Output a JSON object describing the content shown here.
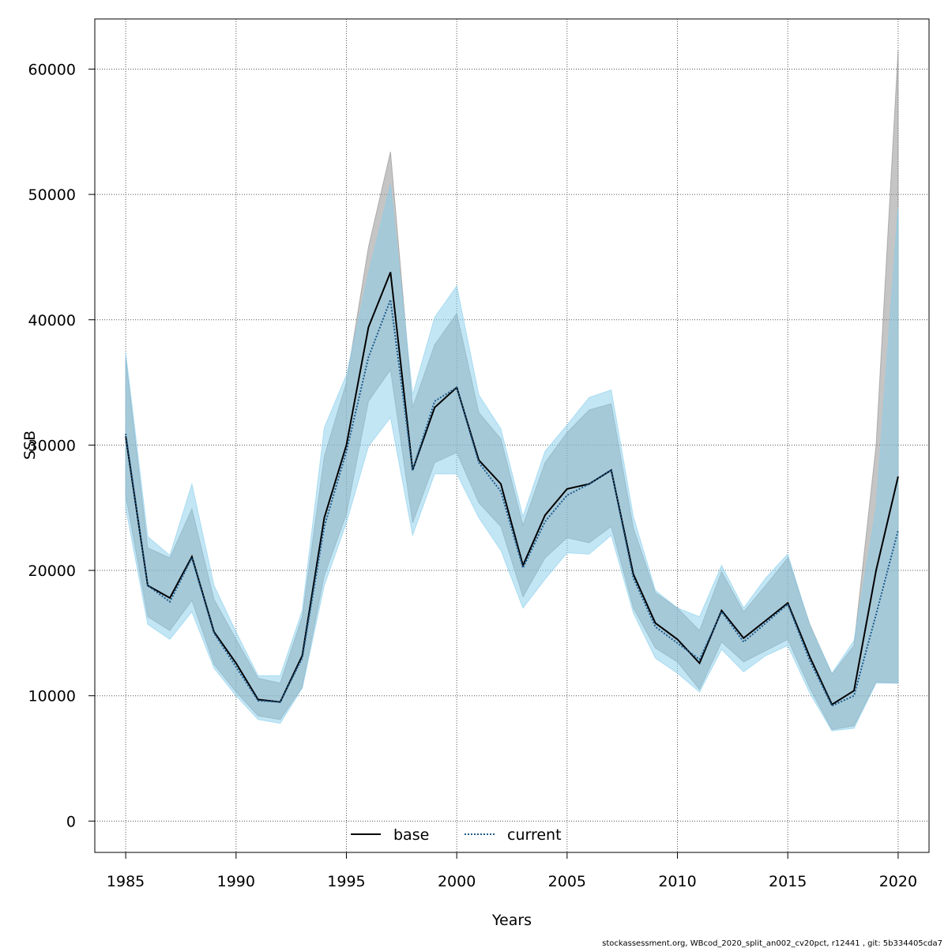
{
  "chart_data": {
    "type": "line",
    "xlabel": "Years",
    "ylabel": "SSB",
    "xlim": [
      1983.6,
      2021.4
    ],
    "ylim": [
      -2500,
      64000
    ],
    "xticks": [
      1985,
      1990,
      1995,
      2000,
      2005,
      2010,
      2015,
      2020
    ],
    "yticks": [
      0,
      10000,
      20000,
      30000,
      40000,
      50000,
      60000
    ],
    "grid": true,
    "legend_position": "bottom",
    "x": [
      1985,
      1986,
      1987,
      1988,
      1989,
      1990,
      1991,
      1992,
      1993,
      1994,
      1995,
      1996,
      1997,
      1998,
      1999,
      2000,
      2001,
      2002,
      2003,
      2004,
      2005,
      2006,
      2007,
      2008,
      2009,
      2010,
      2011,
      2012,
      2013,
      2014,
      2015,
      2016,
      2017,
      2018,
      2019,
      2020
    ],
    "series": [
      {
        "name": "base",
        "color": "#000000",
        "band_color": "#8c8c8c",
        "line_style": "solid",
        "values": [
          30700,
          18800,
          17800,
          21100,
          15100,
          12600,
          9700,
          9500,
          13200,
          24200,
          30000,
          39400,
          43800,
          28000,
          33000,
          34600,
          28800,
          26900,
          20400,
          24400,
          26500,
          26900,
          28000,
          19700,
          15800,
          14500,
          12600,
          16800,
          14600,
          16000,
          17400,
          13100,
          9300,
          10400,
          20000,
          27500
        ],
        "lower": [
          26000,
          16300,
          15200,
          17600,
          12500,
          10300,
          8400,
          8100,
          10700,
          19600,
          24500,
          33500,
          36000,
          23800,
          28600,
          29400,
          25400,
          23500,
          17900,
          21000,
          22600,
          22200,
          23500,
          17000,
          13800,
          12700,
          10500,
          14300,
          12700,
          13600,
          14500,
          10600,
          7300,
          7600,
          11100,
          11000
        ],
        "upper": [
          37000,
          21800,
          21000,
          24900,
          17700,
          14500,
          11400,
          11000,
          16300,
          29100,
          35000,
          45800,
          53400,
          33000,
          38000,
          40500,
          32600,
          30500,
          23600,
          28600,
          31000,
          32800,
          33300,
          23400,
          18200,
          17000,
          15200,
          19900,
          16700,
          18800,
          21000,
          15700,
          11700,
          14000,
          30000,
          61500
        ]
      },
      {
        "name": "current",
        "color": "#1c5a8c",
        "band_color": "#87ceeb",
        "line_style": "dotted",
        "values": [
          30900,
          18800,
          17500,
          21000,
          15000,
          12300,
          9600,
          9500,
          13000,
          23500,
          29500,
          37000,
          41600,
          28000,
          33500,
          34600,
          28600,
          26300,
          20200,
          23900,
          26000,
          26900,
          28000,
          19400,
          15500,
          14200,
          12900,
          16700,
          14300,
          15800,
          17300,
          12800,
          9200,
          10000,
          16500,
          23200
        ],
        "lower": [
          25000,
          15700,
          14500,
          16700,
          12200,
          10000,
          8100,
          7800,
          10600,
          18800,
          23800,
          29900,
          32200,
          22800,
          27700,
          27700,
          24200,
          21600,
          17000,
          19300,
          21400,
          21300,
          22800,
          16600,
          13000,
          11800,
          10300,
          13700,
          11900,
          13200,
          14000,
          10200,
          7200,
          7400,
          11000,
          11000
        ],
        "upper": [
          37400,
          22700,
          21200,
          26900,
          18800,
          15100,
          11600,
          11600,
          16800,
          31400,
          35600,
          43700,
          50800,
          34000,
          40200,
          42700,
          34000,
          31300,
          24300,
          29500,
          31600,
          33800,
          34400,
          24300,
          18400,
          17000,
          16300,
          20400,
          17000,
          19400,
          21300,
          15600,
          11800,
          14400,
          25000,
          49000
        ]
      }
    ]
  },
  "footer": "stockassessment.org, WBcod_2020_split_an002_cv20pct, r12441 , git: 5b334405cda7"
}
